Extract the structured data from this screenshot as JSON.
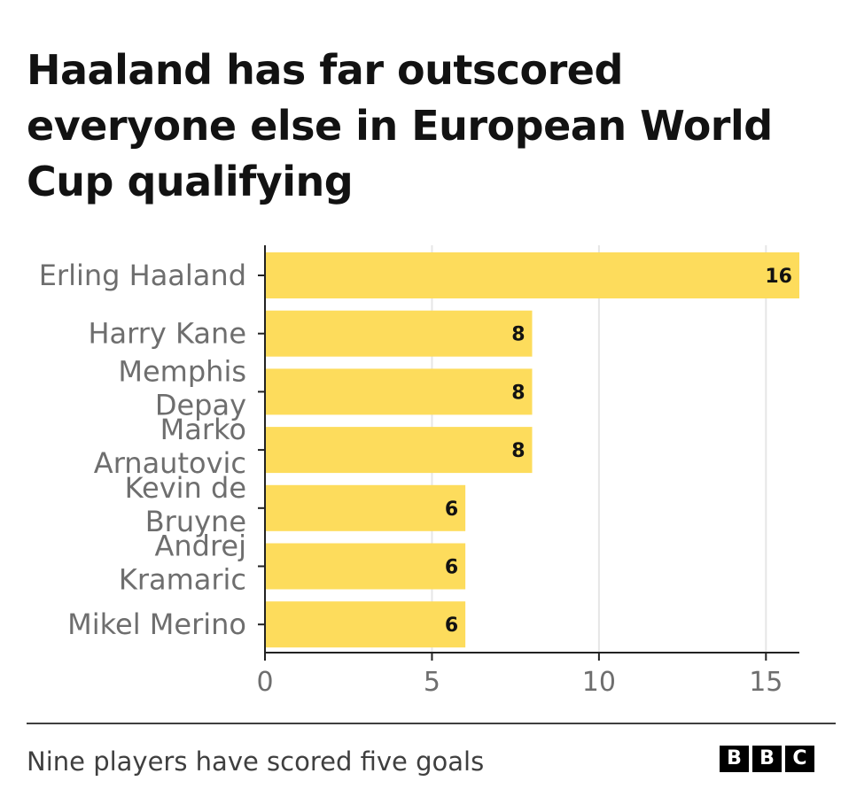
{
  "header": {
    "title": "Haaland has far outscored everyone else in European World Cup qualifying"
  },
  "footer": {
    "note": "Nine players have scored five goals",
    "logo_letters": [
      "B",
      "B",
      "C"
    ]
  },
  "colors": {
    "bar": "#fddc5c",
    "axis": "#222222",
    "grid": "#e6e6e6",
    "label": "#6e6e6e"
  },
  "chart_data": {
    "type": "bar",
    "orientation": "horizontal",
    "title": "Haaland has far outscored everyone else in European World Cup qualifying",
    "categories": [
      [
        "Erling Haaland"
      ],
      [
        "Harry Kane"
      ],
      [
        "Memphis",
        "Depay"
      ],
      [
        "Marko",
        "Arnautovic"
      ],
      [
        "Kevin de",
        "Bruyne"
      ],
      [
        "Andrej",
        "Kramaric"
      ],
      [
        "Mikel Merino"
      ]
    ],
    "values": [
      16,
      8,
      8,
      8,
      6,
      6,
      6
    ],
    "data_labels": [
      "16",
      "8",
      "8",
      "8",
      "6",
      "6",
      "6"
    ],
    "xlim": [
      0,
      16
    ],
    "xticks": [
      0,
      5,
      10,
      15
    ],
    "xtick_labels": [
      "0",
      "5",
      "10",
      "15"
    ],
    "xlabel": "",
    "ylabel": "",
    "grid": true,
    "footnote": "Nine players have scored five goals"
  }
}
